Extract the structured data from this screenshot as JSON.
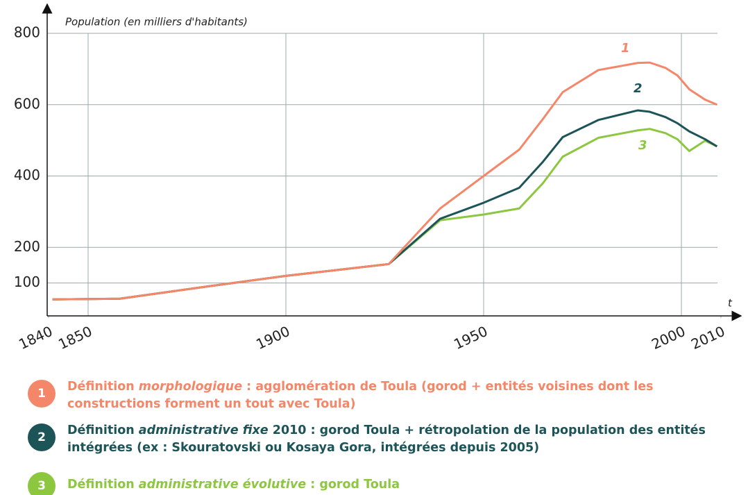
{
  "chart_data": {
    "type": "line",
    "y_label": "Population (en milliers d'habitants)",
    "x_label": "t",
    "x": [
      1841,
      1858,
      1880,
      1900,
      1926,
      1939,
      1950,
      1959,
      1965,
      1970,
      1979,
      1989,
      1992,
      1996,
      1999,
      2002,
      2006,
      2009
    ],
    "series": [
      {
        "name": "1",
        "color": "#f4876a",
        "values": [
          54,
          56,
          90,
          120,
          153,
          309,
          400,
          474,
          560,
          635,
          697,
          717,
          718,
          703,
          682,
          643,
          614,
          600
        ]
      },
      {
        "name": "2",
        "color": "#1d5458",
        "values": [
          54,
          56,
          90,
          120,
          153,
          280,
          325,
          367,
          440,
          509,
          557,
          584,
          580,
          565,
          548,
          525,
          503,
          483
        ]
      },
      {
        "name": "3",
        "color": "#8dc63f",
        "values": [
          54,
          56,
          90,
          120,
          153,
          276,
          292,
          309,
          380,
          454,
          507,
          528,
          532,
          520,
          503,
          470,
          499,
          483
        ]
      }
    ],
    "legend_texts": [
      [
        "Définition ",
        "morphologique",
        " : agglomération de Toula (gorod + entités voisines dont les constructions forment un tout avec Toula)"
      ],
      [
        "Définition ",
        "administrative fixe",
        " 2010 : gorod Toula + rétropolation de la population des entités intégrées (ex : Skouratovski ou Kosaya Gora, intégrées depuis 2005)"
      ],
      [
        "Définition ",
        "administrative évolutive",
        " : gorod Toula"
      ]
    ],
    "xlim": [
      1840,
      2010
    ],
    "xticks": [
      1840,
      1850,
      1900,
      1950,
      2000,
      2010
    ],
    "ylim": [
      0,
      800
    ],
    "yticks": [
      100,
      200,
      400,
      600,
      800
    ],
    "grid": true
  }
}
